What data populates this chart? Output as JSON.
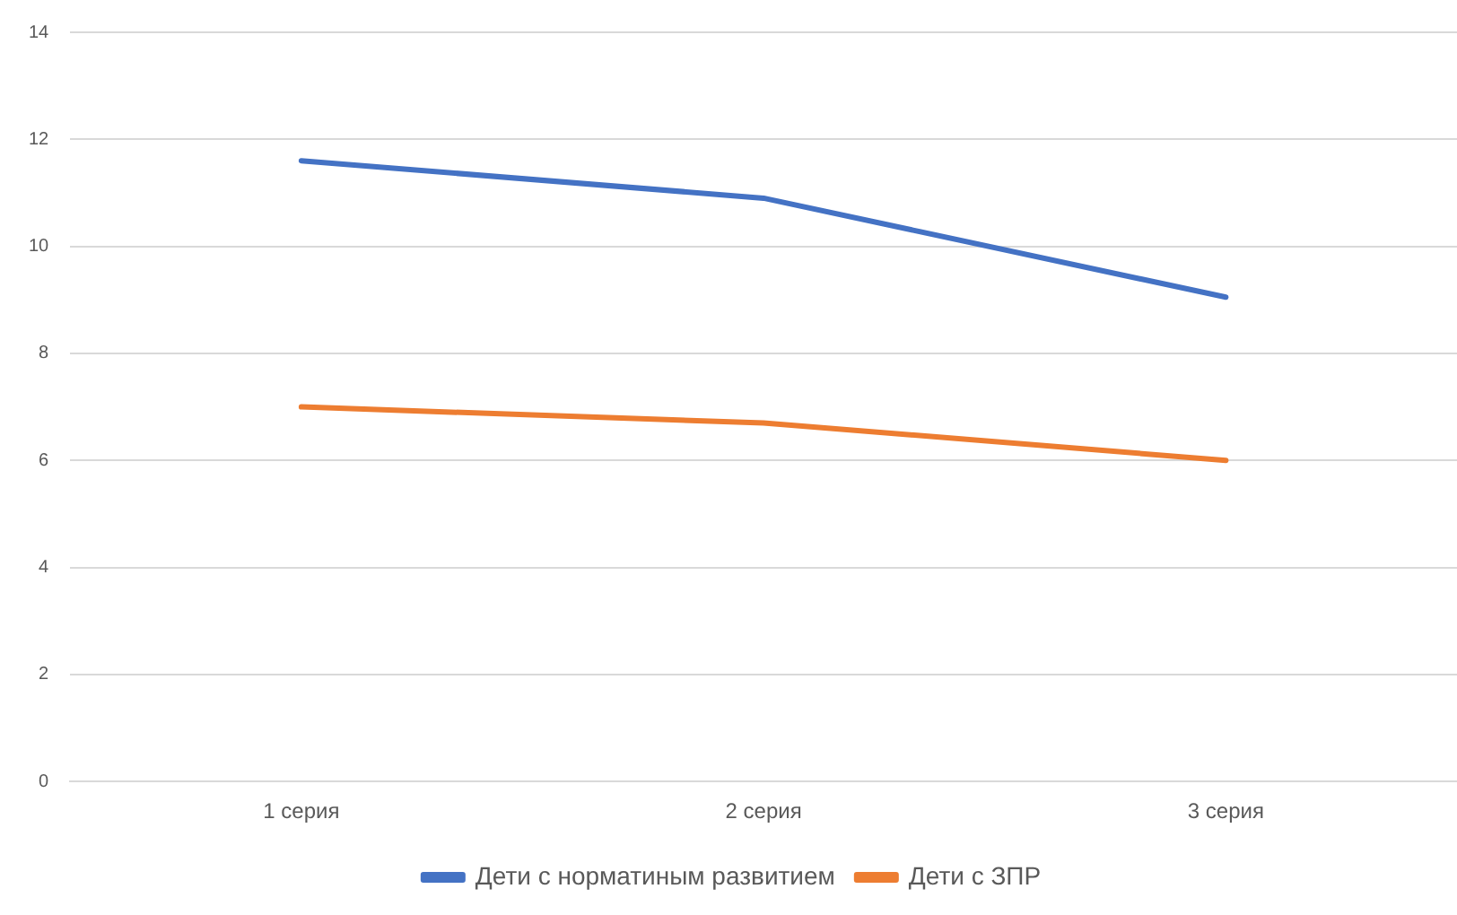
{
  "chart_data": {
    "type": "line",
    "categories": [
      "1 серия",
      "2 серия",
      "3 серия"
    ],
    "series": [
      {
        "name": "Дети с норматиным развитием",
        "color": "#4472c4",
        "values": [
          11.6,
          10.9,
          9.05
        ]
      },
      {
        "name": "Дети с ЗПР",
        "color": "#ed7d31",
        "values": [
          7.0,
          6.7,
          6.0
        ]
      }
    ],
    "ylim": [
      0,
      14
    ],
    "yticks": [
      0,
      2,
      4,
      6,
      8,
      10,
      12,
      14
    ],
    "grid": "y",
    "legend": "bottom",
    "marker": "none",
    "line_style": "solid"
  }
}
